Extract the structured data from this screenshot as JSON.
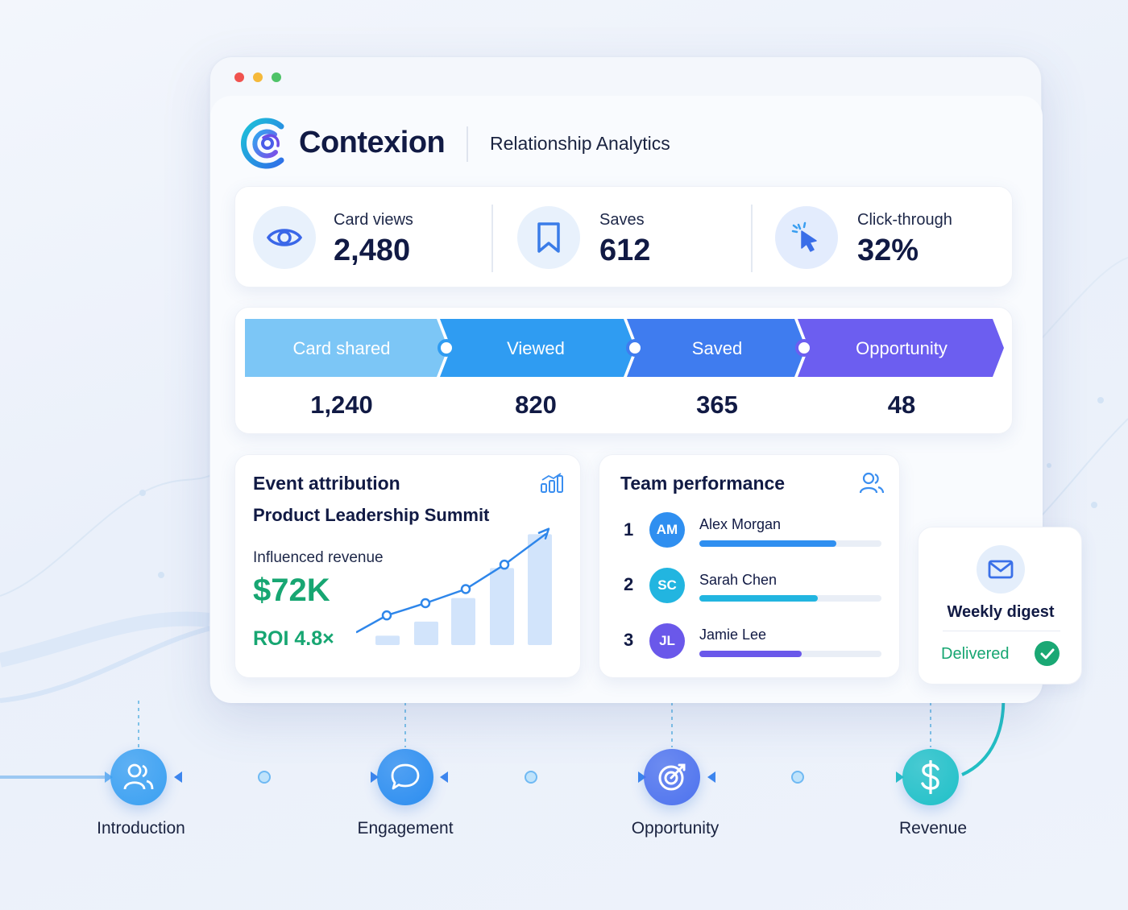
{
  "app": {
    "name": "Contexion",
    "subtitle": "Relationship Analytics"
  },
  "window_controls": {
    "colors": [
      "#f0534f",
      "#f5b93a",
      "#4fc368"
    ]
  },
  "stats": [
    {
      "label": "Card views",
      "value": "2,480",
      "icon": "eye-icon"
    },
    {
      "label": "Saves",
      "value": "612",
      "icon": "bookmark-icon"
    },
    {
      "label": "Click-through",
      "value": "32%",
      "icon": "cursor-click-icon"
    }
  ],
  "funnel": {
    "stages": [
      {
        "label": "Card shared",
        "value": "1,240",
        "color": "#7cc6f6"
      },
      {
        "label": "Viewed",
        "value": "820",
        "color": "#2f9cf2"
      },
      {
        "label": "Saved",
        "value": "365",
        "color": "#3f7cef"
      },
      {
        "label": "Opportunity",
        "value": "48",
        "color": "#6c5ef0"
      }
    ]
  },
  "event_attribution": {
    "title": "Event attribution",
    "event_name": "Product Leadership Summit",
    "revenue_label": "Influenced revenue",
    "revenue_value": "$72K",
    "roi": "ROI 4.8×",
    "icon": "bar-chart-icon",
    "chart": {
      "bars": [
        1,
        2.5,
        5,
        8.2,
        11.8
      ],
      "line": [
        1,
        2.3,
        3.6,
        5.1,
        7.7,
        11
      ]
    }
  },
  "team_performance": {
    "title": "Team performance",
    "icon": "users-icon",
    "members": [
      {
        "rank": "1",
        "initials": "AM",
        "name": "Alex Morgan",
        "score": 0.75,
        "color": "#2f8ff0"
      },
      {
        "rank": "2",
        "initials": "SC",
        "name": "Sarah Chen",
        "score": 0.65,
        "color": "#22b5e0"
      },
      {
        "rank": "3",
        "initials": "JL",
        "name": "Jamie Lee",
        "score": 0.56,
        "color": "#6a58ea"
      }
    ]
  },
  "digest": {
    "title": "Weekly digest",
    "status": "Delivered",
    "icon": "mail-icon"
  },
  "journey": {
    "steps": [
      {
        "label": "Introduction",
        "icon": "users-icon",
        "color": "#3aa0f2"
      },
      {
        "label": "Engagement",
        "icon": "chat-bubble-icon",
        "color": "#2b8df0"
      },
      {
        "label": "Opportunity",
        "icon": "target-icon",
        "color": "#4d72ee"
      },
      {
        "label": "Revenue",
        "icon": "dollar-icon",
        "color": "#1fc0c8"
      }
    ]
  }
}
